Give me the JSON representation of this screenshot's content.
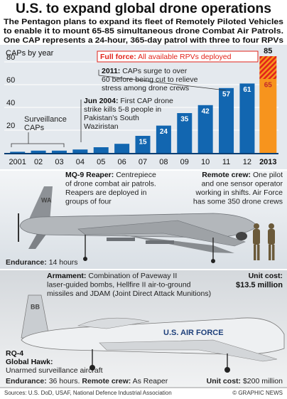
{
  "header": {
    "title": "U.S. to expand global drone operations",
    "subtitle": [
      "The Pentagon plans to expand its fleet of Remotely Piloted Vehicles",
      "to enable it to mount 65-85 simultaneous drone Combat Air Patrols.",
      "One CAP represents a 24-hour, 365-day patrol with three to four RPVs"
    ]
  },
  "chart_data": {
    "type": "bar",
    "title": "CAPs by year",
    "categories": [
      "2001",
      "02",
      "03",
      "04",
      "05",
      "06",
      "07",
      "08",
      "09",
      "10",
      "11",
      "12",
      "2013"
    ],
    "values": [
      1,
      2,
      2,
      3,
      5,
      8,
      15,
      24,
      35,
      42,
      57,
      61,
      65
    ],
    "value_labels": [
      null,
      null,
      null,
      null,
      null,
      null,
      "15",
      "24",
      "35",
      "42",
      "57",
      "61",
      "65"
    ],
    "colors": [
      "#1266b0",
      "#1266b0",
      "#1266b0",
      "#1266b0",
      "#1266b0",
      "#1266b0",
      "#1266b0",
      "#1266b0",
      "#1266b0",
      "#1266b0",
      "#1266b0",
      "#1266b0",
      "#f7941d"
    ],
    "ylim": [
      0,
      90
    ],
    "yticks": [
      20,
      40,
      60,
      80
    ],
    "grid": true,
    "full_force": {
      "label": "Full force:",
      "text": "All available RPVs deployed",
      "value": 85,
      "color": "#e2231a"
    },
    "annotations": [
      {
        "lines": [
          "Surveillance",
          "CAPs"
        ]
      },
      {
        "label": "Jun 2004:",
        "lines": [
          "First CAP drone",
          "strike kills 5-8 people in",
          "Pakistan's South",
          "Waziristan"
        ]
      },
      {
        "label": "2011:",
        "lines": [
          "CAPs surge to over",
          "60 before being cut to relieve",
          "stress among drone crews"
        ]
      }
    ]
  },
  "reaper": {
    "name": {
      "label": "MQ-9 Reaper:",
      "lines": [
        "Centrepiece",
        "of drone combat air patrols.",
        "Reapers are deployed in",
        "groups of four"
      ]
    },
    "crew": {
      "label": "Remote crew:",
      "lines": [
        "One pilot",
        "and one sensor operator",
        "working in shifts. Air Force",
        "has some 350 drone crews"
      ]
    },
    "endurance": {
      "label": "Endurance:",
      "text": "14 hours"
    },
    "armament": {
      "label": "Armament:",
      "lines": [
        "Combination of Paveway II",
        "laser-guided bombs, Hellfire II air-to-ground",
        "missiles and JDAM (Joint Direct Attack Munitions)"
      ]
    },
    "cost": {
      "label": "Unit cost:",
      "text": "$13.5 million"
    },
    "marking": "WA"
  },
  "hawk": {
    "name": [
      "RQ-4",
      "Global Hawk:"
    ],
    "description": "Unarmed surveillance aircraft",
    "endurance": {
      "label": "Endurance:",
      "text": "36 hours."
    },
    "crew": {
      "label": "Remote crew:",
      "text": "As Reaper"
    },
    "cost": {
      "label": "Unit cost:",
      "text": "$200 million"
    },
    "marking": "U.S. AIR FORCE",
    "tail": "BB"
  },
  "footer": {
    "sources": "Sources: U.S. DoD, USAF, National Defence Industrial Association",
    "credit": "© GRAPHIC NEWS"
  }
}
